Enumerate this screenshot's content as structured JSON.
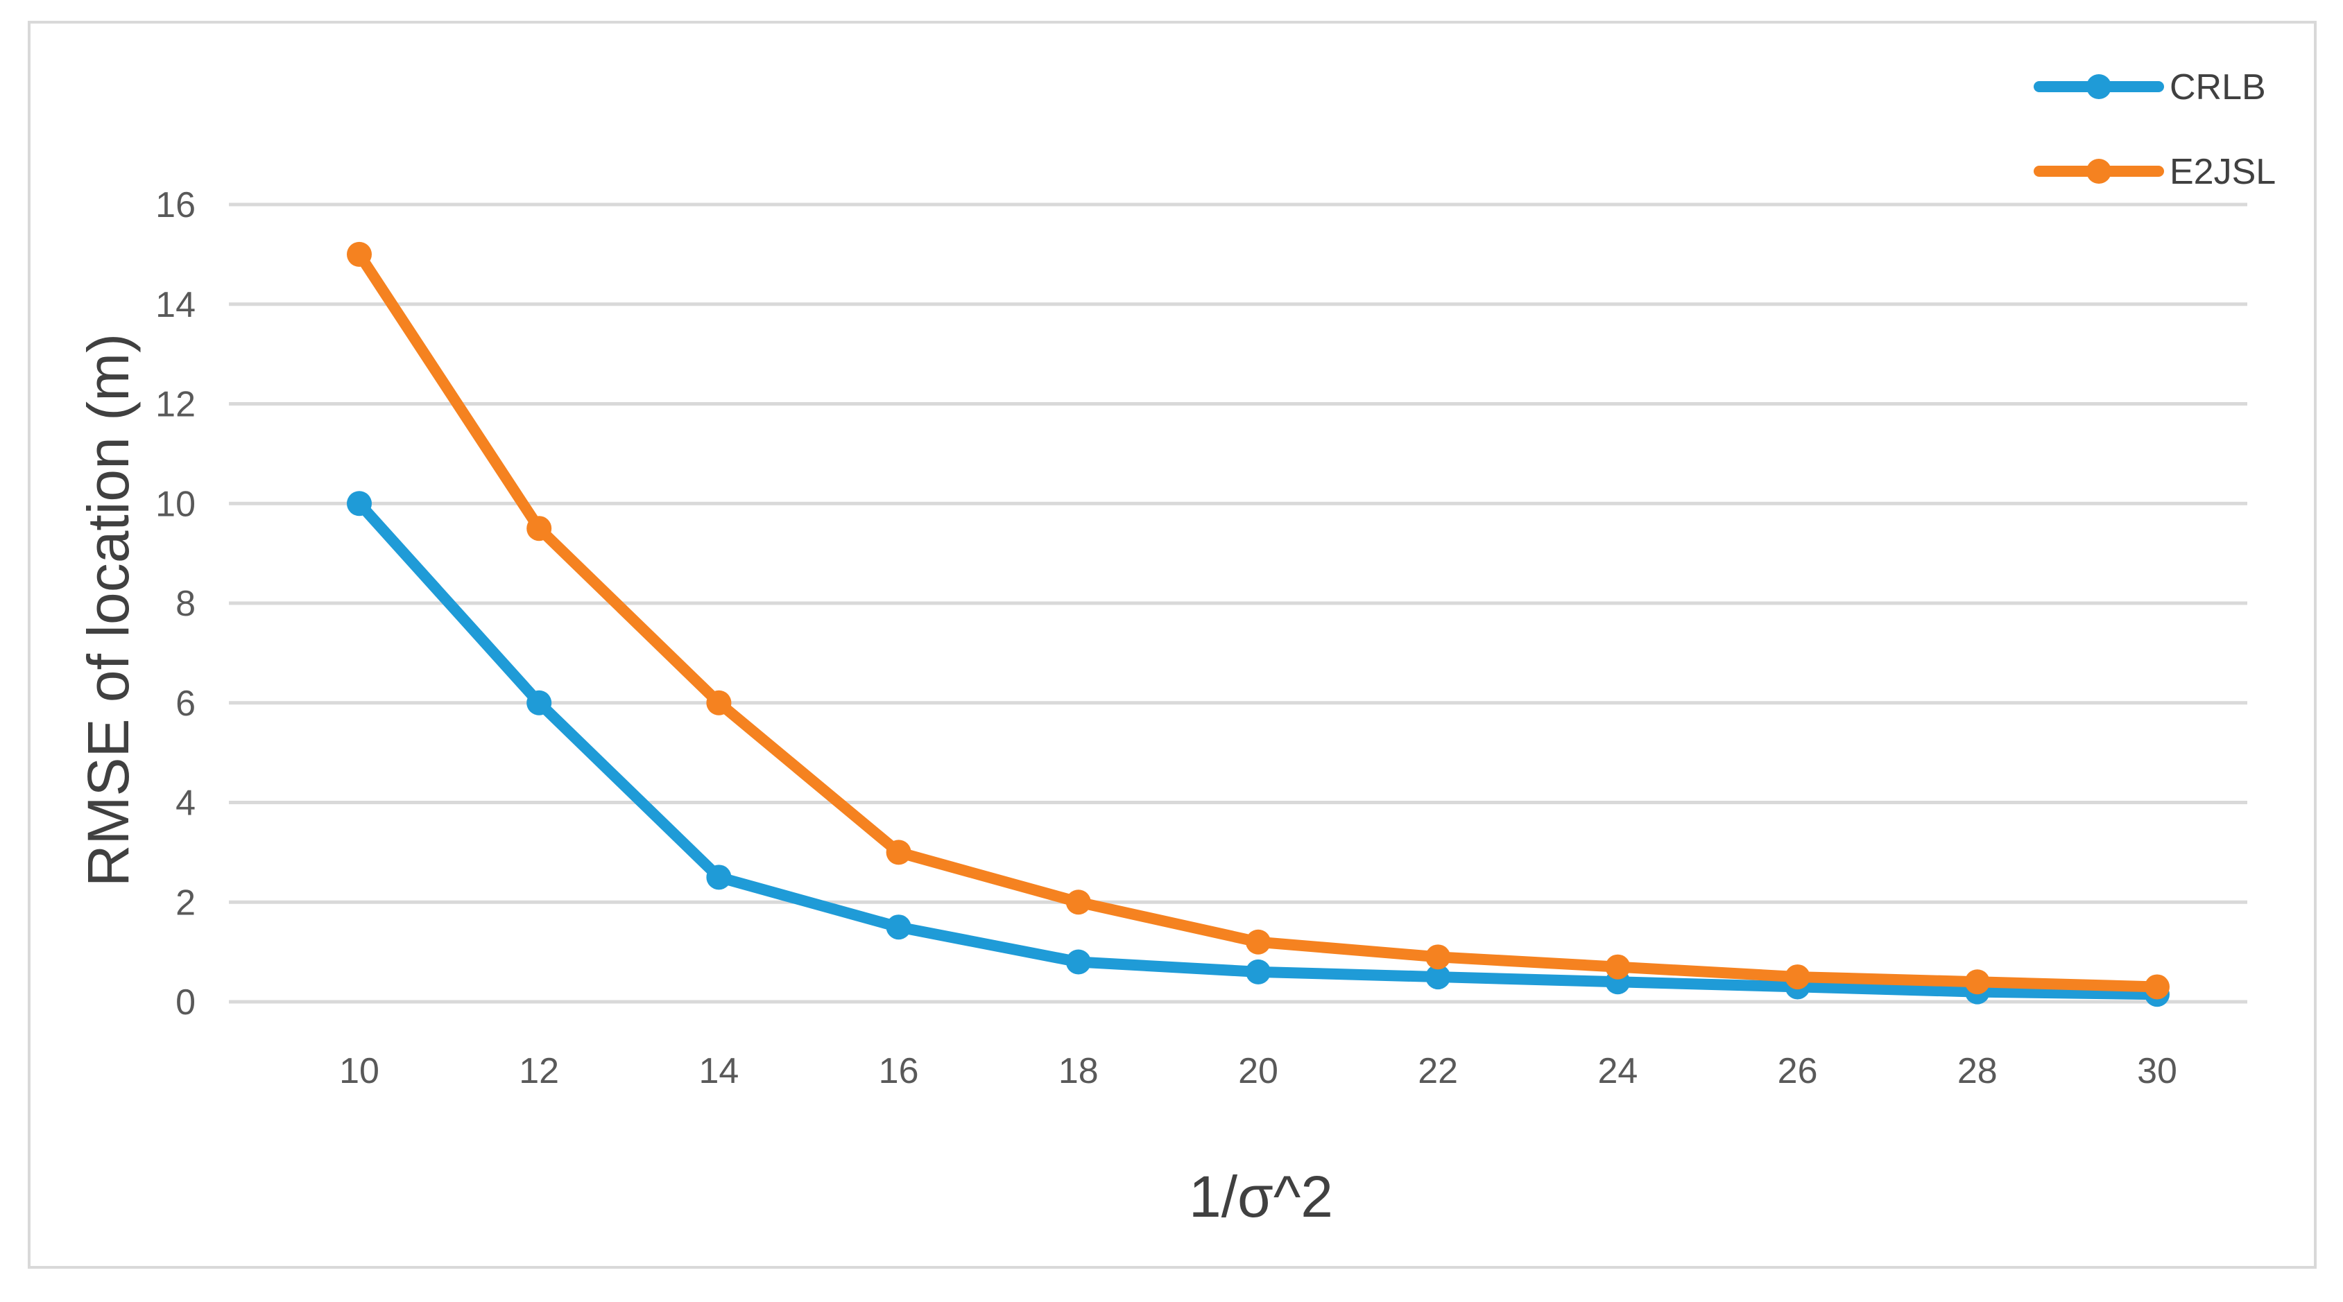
{
  "chart_data": {
    "type": "line",
    "title": "",
    "xlabel": "1/σ^2",
    "ylabel": "RMSE of location (m)",
    "x": [
      10,
      12,
      14,
      16,
      18,
      20,
      22,
      24,
      26,
      28,
      30
    ],
    "x_tick_labels": [
      "10",
      "12",
      "14",
      "16",
      "18",
      "20",
      "22",
      "24",
      "26",
      "28",
      "30"
    ],
    "y_ticks": [
      0,
      2,
      4,
      6,
      8,
      10,
      12,
      14,
      16
    ],
    "y_tick_labels": [
      "0",
      "2",
      "4",
      "6",
      "8",
      "10",
      "12",
      "14",
      "16"
    ],
    "ylim": [
      0,
      16
    ],
    "grid": "horizontal",
    "legend_position": "top-right",
    "series": [
      {
        "name": "CRLB",
        "color": "#1f9bd7",
        "values": [
          10,
          6,
          2.5,
          1.5,
          0.8,
          0.6,
          0.5,
          0.4,
          0.3,
          0.2,
          0.15
        ]
      },
      {
        "name": "E2JSL",
        "color": "#f58220",
        "values": [
          15,
          9.5,
          6,
          3,
          2,
          1.2,
          0.9,
          0.7,
          0.5,
          0.4,
          0.3
        ]
      }
    ]
  }
}
